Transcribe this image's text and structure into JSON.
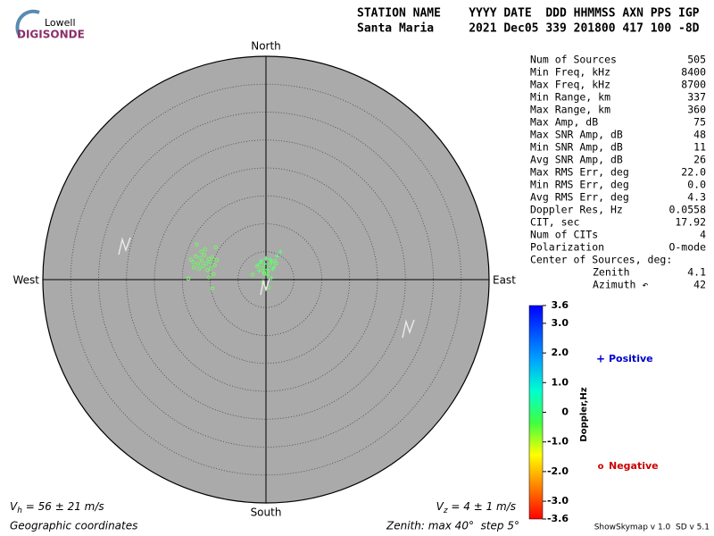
{
  "logo": {
    "top": "Lowell",
    "bottom": "DIGISONDE"
  },
  "header": {
    "columns": "STATION NAME    YYYY DATE  DDD HHMMSS AXN PPS IGP",
    "values": "Santa Maria     2021 Dec05 339 201800 417 100 -8D"
  },
  "chart_data": {
    "type": "polar-scatter",
    "directions": {
      "north": "North",
      "south": "South",
      "east": "East",
      "west": "West"
    },
    "rlim": [
      0,
      40
    ],
    "rticks": [
      5,
      10,
      15,
      20,
      25,
      30,
      35,
      40
    ],
    "x": [
      -13.5,
      -13.0,
      -12.6,
      -12.2,
      -11.8,
      -11.5,
      -11.1,
      -10.7,
      -10.3,
      -10.0,
      -9.6,
      -9.2,
      -12.9,
      -12.0,
      -11.3,
      -10.5,
      -9.9,
      -10.9,
      -11.6,
      -8.8,
      -9.4,
      -12.4,
      -10.2,
      -9.0,
      -13.9,
      -9.6,
      -1.4,
      -1.0,
      -0.6,
      -0.2,
      0.2,
      0.6,
      1.0,
      1.4,
      1.8,
      -1.2,
      -0.4,
      0.4,
      1.2,
      -0.8,
      0.0,
      0.8,
      1.6,
      -1.6,
      0.3,
      -0.3,
      2.0,
      2.6,
      -0.6,
      1.0,
      0.5,
      -2.4
    ],
    "y": [
      3.6,
      3.1,
      4.2,
      2.8,
      3.9,
      3.3,
      4.4,
      2.9,
      3.7,
      3.2,
      4.0,
      2.6,
      2.2,
      1.9,
      2.4,
      1.7,
      2.0,
      5.4,
      5.0,
      3.5,
      1.0,
      6.3,
      0.4,
      5.8,
      0.2,
      -1.6,
      2.5,
      3.0,
      2.1,
      2.8,
      1.8,
      2.6,
      3.1,
      2.2,
      2.9,
      1.6,
      1.4,
      1.5,
      1.9,
      3.4,
      3.8,
      3.6,
      3.3,
      2.4,
      0.8,
      1.1,
      4.2,
      5.0,
      -0.5,
      0.3,
      -1.4,
      0.9
    ],
    "doppler": [
      -0.2,
      -0.1,
      -0.3,
      -0.2,
      -0.1,
      -0.2,
      -0.3,
      -0.1,
      -0.2,
      -0.1,
      -0.2,
      -0.3,
      -0.2,
      -0.1,
      -0.2,
      -0.3,
      -0.1,
      -0.2,
      -0.1,
      -0.2,
      -0.3,
      -0.2,
      -0.1,
      -0.2,
      -0.3,
      -0.2,
      0.3,
      0.2,
      -0.2,
      0.4,
      0.3,
      -0.1,
      0.2,
      0.4,
      -0.2,
      0.3,
      0.2,
      -0.3,
      0.3,
      0.4,
      0.2,
      0.3,
      -0.2,
      -0.1,
      0.2,
      -0.2,
      0.3,
      0.4,
      -0.2,
      0.3,
      -0.1,
      -0.2
    ],
    "colorbar": {
      "label": "Doppler,Hz",
      "lim": [
        -3.6,
        3.6
      ],
      "ticks": [
        3.6,
        {
          "value": 3.0,
          "label": "3.0"
        },
        {
          "value": 2.0,
          "label": "2.0"
        },
        {
          "value": 1.0,
          "label": "1.0"
        },
        0,
        {
          "value": -1.0,
          "label": "-1.0"
        },
        {
          "value": -2.0,
          "label": "-2.0"
        },
        {
          "value": -3.0,
          "label": "-3.0"
        },
        -3.6
      ]
    },
    "legend": {
      "positive": {
        "symbol": "+",
        "label": "Positive",
        "color": "#0000cc"
      },
      "negative": {
        "symbol": "o",
        "label": "Negative",
        "color": "#cc0000"
      }
    }
  },
  "stats": {
    "rows": [
      [
        "Num of Sources",
        "505"
      ],
      [
        "Min Freq, kHz",
        "8400"
      ],
      [
        "Max Freq, kHz",
        "8700"
      ],
      [
        "Min Range, km",
        "337"
      ],
      [
        "Max Range, km",
        "360"
      ],
      [
        "Max Amp, dB",
        "75"
      ],
      [
        "Max SNR Amp, dB",
        "48"
      ],
      [
        "Min SNR Amp, dB",
        "11"
      ],
      [
        "Avg SNR Amp, dB",
        "26"
      ],
      [
        "Max RMS Err, deg",
        "22.0"
      ],
      [
        "Min RMS Err, deg",
        "0.0"
      ],
      [
        "Avg RMS Err, deg",
        "4.3"
      ],
      [
        "Doppler Res, Hz",
        "0.0558"
      ],
      [
        "CIT, sec",
        "17.92"
      ],
      [
        "Num of CITs",
        "4"
      ],
      [
        "Polarization",
        "O-mode"
      ]
    ],
    "center_title": "Center of Sources, deg:",
    "center": [
      [
        "Zenith",
        "4.1"
      ],
      [
        "Azimuth ↶",
        "42"
      ]
    ]
  },
  "footer": {
    "vh": {
      "symbol": "V",
      "sub": "h",
      "text": " = 56 ± 21 m/s"
    },
    "vz": {
      "symbol": "V",
      "sub": "z",
      "text": " = 4 ± 1 m/s"
    },
    "coords": "Geographic coordinates",
    "zenith": "Zenith: max 40°  step 5°",
    "version": "ShowSkymap v 1.0  SD v 5.1"
  }
}
